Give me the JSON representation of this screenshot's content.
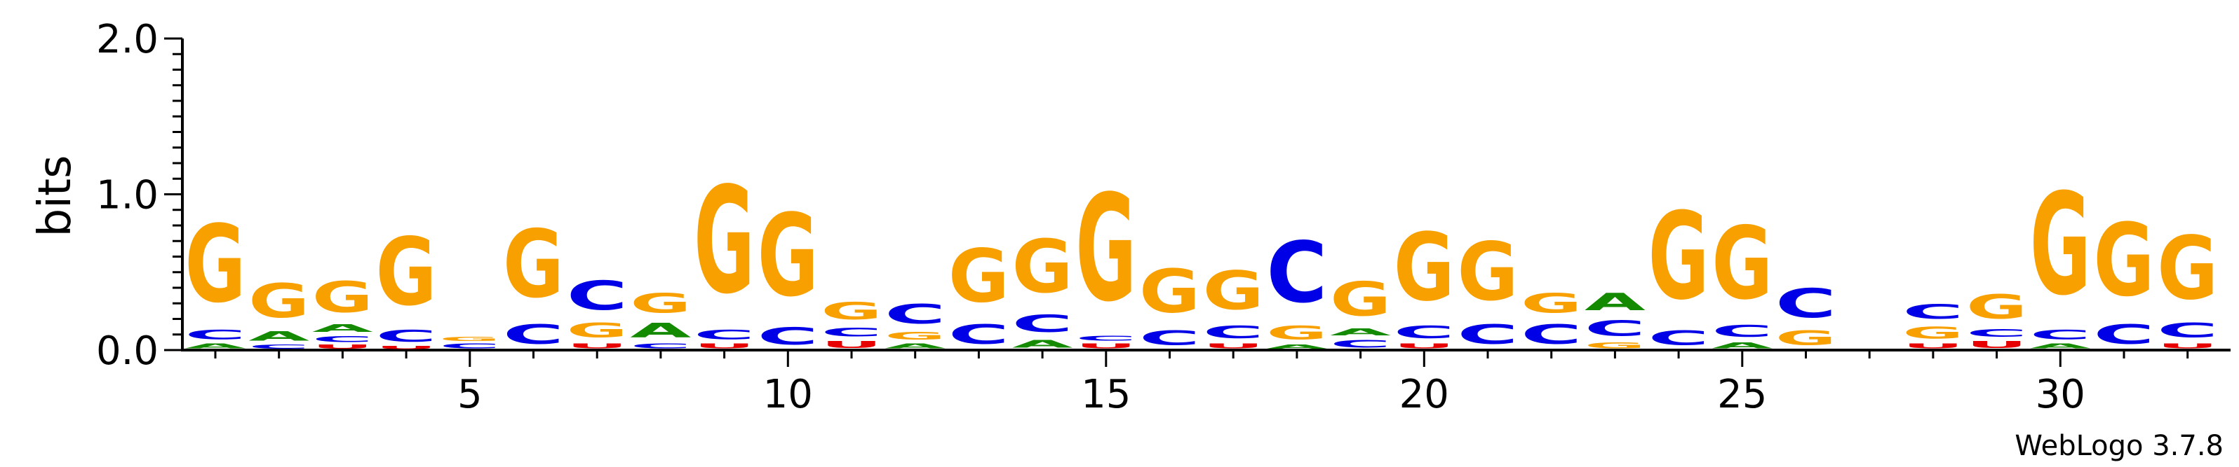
{
  "chart_data": {
    "type": "sequence-logo",
    "ylabel": "bits",
    "ylim": [
      0,
      2.0
    ],
    "y_tick_labels": [
      "0.0",
      "1.0",
      "2.0"
    ],
    "x_tick_labels": [
      "5",
      "10",
      "15",
      "20",
      "25",
      "30"
    ],
    "x_tick_values": [
      5,
      10,
      15,
      20,
      25,
      30
    ],
    "credit": "WebLogo 3.7.8",
    "colors": {
      "G": "#f7a000",
      "C": "#0000e6",
      "A": "#138a00",
      "U": "#e60000"
    },
    "positions": [
      {
        "pos": 1,
        "letters": [
          [
            "A",
            0.05
          ],
          [
            "C",
            0.1
          ],
          [
            "G",
            0.8
          ]
        ]
      },
      {
        "pos": 2,
        "letters": [
          [
            "C",
            0.04
          ],
          [
            "A",
            0.1
          ],
          [
            "G",
            0.35
          ]
        ]
      },
      {
        "pos": 3,
        "letters": [
          [
            "U",
            0.04
          ],
          [
            "C",
            0.06
          ],
          [
            "A",
            0.08
          ],
          [
            "G",
            0.32
          ]
        ]
      },
      {
        "pos": 4,
        "letters": [
          [
            "U",
            0.03
          ],
          [
            "C",
            0.12
          ],
          [
            "G",
            0.7
          ]
        ]
      },
      {
        "pos": 5,
        "letters": [
          [
            "C",
            0.05
          ],
          [
            "G",
            0.04
          ]
        ]
      },
      {
        "pos": 6,
        "letters": [
          [
            "C",
            0.2
          ],
          [
            "G",
            0.7
          ]
        ]
      },
      {
        "pos": 7,
        "letters": [
          [
            "U",
            0.05
          ],
          [
            "G",
            0.15
          ],
          [
            "C",
            0.3
          ]
        ]
      },
      {
        "pos": 8,
        "letters": [
          [
            "C",
            0.05
          ],
          [
            "A",
            0.15
          ],
          [
            "G",
            0.2
          ]
        ]
      },
      {
        "pos": 9,
        "letters": [
          [
            "U",
            0.05
          ],
          [
            "C",
            0.1
          ],
          [
            "G",
            1.1
          ]
        ]
      },
      {
        "pos": 10,
        "letters": [
          [
            "C",
            0.18
          ],
          [
            "G",
            0.85
          ]
        ]
      },
      {
        "pos": 11,
        "letters": [
          [
            "U",
            0.07
          ],
          [
            "C",
            0.09
          ],
          [
            "G",
            0.18
          ]
        ]
      },
      {
        "pos": 12,
        "letters": [
          [
            "A",
            0.05
          ],
          [
            "G",
            0.08
          ],
          [
            "C",
            0.2
          ]
        ]
      },
      {
        "pos": 13,
        "letters": [
          [
            "C",
            0.2
          ],
          [
            "G",
            0.55
          ]
        ]
      },
      {
        "pos": 14,
        "letters": [
          [
            "A",
            0.08
          ],
          [
            "C",
            0.18
          ],
          [
            "G",
            0.55
          ]
        ]
      },
      {
        "pos": 15,
        "letters": [
          [
            "U",
            0.05
          ],
          [
            "C",
            0.05
          ],
          [
            "G",
            1.1
          ]
        ]
      },
      {
        "pos": 16,
        "letters": [
          [
            "C",
            0.15
          ],
          [
            "G",
            0.45
          ]
        ]
      },
      {
        "pos": 17,
        "letters": [
          [
            "U",
            0.05
          ],
          [
            "C",
            0.13
          ],
          [
            "G",
            0.4
          ]
        ]
      },
      {
        "pos": 18,
        "letters": [
          [
            "A",
            0.04
          ],
          [
            "G",
            0.14
          ],
          [
            "C",
            0.63
          ]
        ]
      },
      {
        "pos": 19,
        "letters": [
          [
            "C",
            0.08
          ],
          [
            "A",
            0.07
          ],
          [
            "G",
            0.35
          ]
        ]
      },
      {
        "pos": 20,
        "letters": [
          [
            "U",
            0.05
          ],
          [
            "C",
            0.13
          ],
          [
            "G",
            0.7
          ]
        ]
      },
      {
        "pos": 21,
        "letters": [
          [
            "C",
            0.2
          ],
          [
            "G",
            0.6
          ]
        ]
      },
      {
        "pos": 22,
        "letters": [
          [
            "C",
            0.2
          ],
          [
            "G",
            0.2
          ]
        ]
      },
      {
        "pos": 23,
        "letters": [
          [
            "G",
            0.06
          ],
          [
            "C",
            0.16
          ],
          [
            "A",
            0.18
          ]
        ]
      },
      {
        "pos": 24,
        "letters": [
          [
            "C",
            0.15
          ],
          [
            "G",
            0.9
          ]
        ]
      },
      {
        "pos": 25,
        "letters": [
          [
            "A",
            0.06
          ],
          [
            "C",
            0.12
          ],
          [
            "G",
            0.75
          ]
        ]
      },
      {
        "pos": 26,
        "letters": [
          [
            "G",
            0.15
          ],
          [
            "C",
            0.3
          ]
        ]
      },
      {
        "pos": 27,
        "letters": []
      },
      {
        "pos": 28,
        "letters": [
          [
            "U",
            0.05
          ],
          [
            "G",
            0.12
          ],
          [
            "C",
            0.15
          ]
        ]
      },
      {
        "pos": 29,
        "letters": [
          [
            "U",
            0.07
          ],
          [
            "C",
            0.08
          ],
          [
            "G",
            0.25
          ]
        ]
      },
      {
        "pos": 30,
        "letters": [
          [
            "A",
            0.05
          ],
          [
            "C",
            0.1
          ],
          [
            "G",
            1.05
          ]
        ]
      },
      {
        "pos": 31,
        "letters": [
          [
            "C",
            0.2
          ],
          [
            "G",
            0.75
          ]
        ]
      },
      {
        "pos": 32,
        "letters": [
          [
            "U",
            0.05
          ],
          [
            "C",
            0.15
          ],
          [
            "G",
            0.65
          ]
        ]
      }
    ]
  }
}
